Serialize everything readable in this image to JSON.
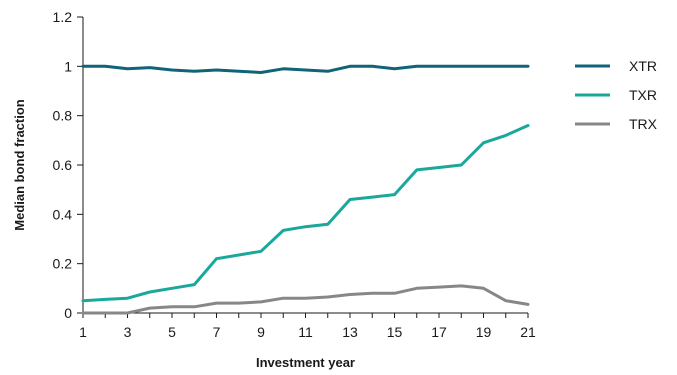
{
  "chart_data": {
    "type": "line",
    "xlabel": "Investment year",
    "ylabel": "Median bond fraction",
    "xlim": [
      1,
      21
    ],
    "ylim": [
      0,
      1.2
    ],
    "x_ticks": [
      1,
      3,
      5,
      7,
      9,
      11,
      13,
      15,
      17,
      19,
      21
    ],
    "y_ticks": [
      0,
      0.2,
      0.4,
      0.6,
      0.8,
      1,
      1.2
    ],
    "y_tick_labels": [
      "0",
      "0.2",
      "0.4",
      "0.6",
      "0.8",
      "1",
      "1.2"
    ],
    "grid": false,
    "legend_position": "right",
    "x": [
      1,
      2,
      3,
      4,
      5,
      6,
      7,
      8,
      9,
      10,
      11,
      12,
      13,
      14,
      15,
      16,
      17,
      18,
      19,
      20,
      21
    ],
    "series": [
      {
        "name": "XTR",
        "color": "#0f6478",
        "values": [
          1.0,
          1.0,
          0.99,
          0.995,
          0.985,
          0.98,
          0.985,
          0.98,
          0.975,
          0.99,
          0.985,
          0.98,
          1.0,
          1.0,
          0.99,
          1.0,
          1.0,
          1.0,
          1.0,
          1.0,
          1.0
        ]
      },
      {
        "name": "TXR",
        "color": "#1aa89c",
        "values": [
          0.05,
          0.055,
          0.06,
          0.085,
          0.1,
          0.115,
          0.22,
          0.235,
          0.25,
          0.335,
          0.35,
          0.36,
          0.46,
          0.47,
          0.48,
          0.58,
          0.59,
          0.6,
          0.69,
          0.72,
          0.76
        ]
      },
      {
        "name": "TRX",
        "color": "#878787",
        "values": [
          0.0,
          0.0,
          0.0,
          0.02,
          0.025,
          0.025,
          0.04,
          0.04,
          0.045,
          0.06,
          0.06,
          0.065,
          0.075,
          0.08,
          0.08,
          0.1,
          0.105,
          0.11,
          0.1,
          0.05,
          0.035
        ]
      }
    ]
  }
}
